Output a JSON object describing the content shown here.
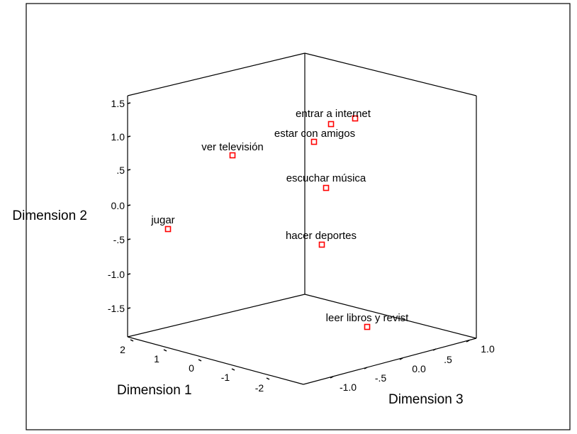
{
  "chart_data": {
    "type": "scatter",
    "subtype": "3d-scatter",
    "title": "",
    "axes": {
      "x": {
        "label": "Dimension 1",
        "ticks": [
          "2",
          "1",
          "0",
          "-1",
          "-2"
        ]
      },
      "y": {
        "label": "Dimension 2",
        "ticks": [
          "1.5",
          "1.0",
          ".5",
          "0.0",
          "-.5",
          "-1.0",
          "-1.5"
        ]
      },
      "z": {
        "label": "Dimension 3",
        "ticks": [
          "-1.0",
          "-.5",
          "0.0",
          ".5",
          "1.0"
        ]
      }
    },
    "marker": {
      "shape": "square",
      "color": "#ff0000"
    },
    "points": [
      {
        "label": "entrar a internet"
      },
      {
        "label": "estar con amigos"
      },
      {
        "label": "ver televisión"
      },
      {
        "label": "escuchar música"
      },
      {
        "label": "jugar"
      },
      {
        "label": "hacer deportes"
      },
      {
        "label": "leer libros y revist"
      }
    ]
  }
}
